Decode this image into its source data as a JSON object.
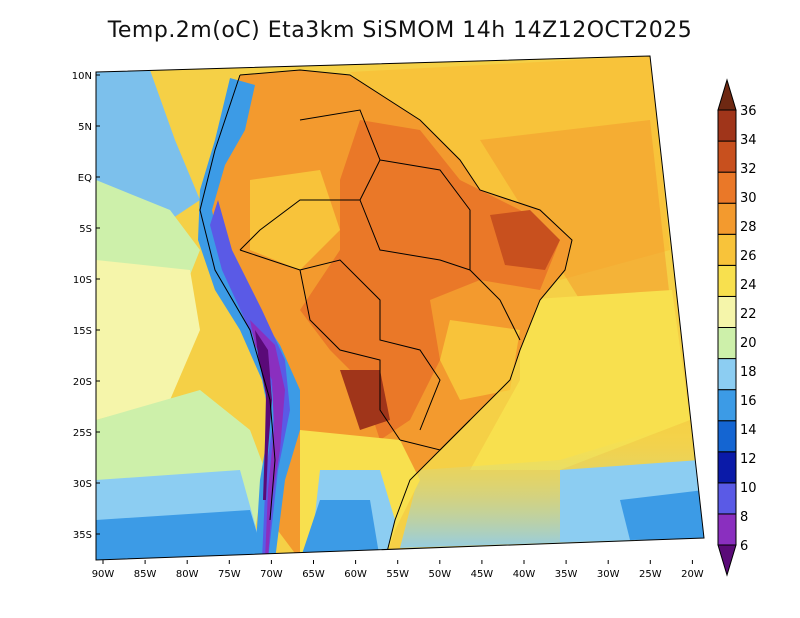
{
  "title": "Temp.2m(oC) Eta3km SiSMOM 14h 14Z12OCT2025",
  "lat_labels": [
    "10N",
    "5N",
    "EQ",
    "5S",
    "10S",
    "15S",
    "20S",
    "25S",
    "30S",
    "35S"
  ],
  "lon_labels": [
    "90W",
    "85W",
    "80W",
    "75W",
    "70W",
    "65W",
    "60W",
    "55W",
    "50W",
    "45W",
    "40W",
    "35W",
    "30W",
    "25W",
    "20W"
  ],
  "colorbar": {
    "labels": [
      "6",
      "8",
      "10",
      "12",
      "14",
      "16",
      "18",
      "20",
      "22",
      "24",
      "26",
      "28",
      "30",
      "32",
      "34",
      "36"
    ],
    "colors": [
      "#5a0a78",
      "#8a2fbf",
      "#5a5ae6",
      "#0a1aa8",
      "#1465d2",
      "#3c9be6",
      "#8ccdf2",
      "#cdf0aa",
      "#f5f5aa",
      "#f8e04e",
      "#f8c33a",
      "#f39a2e",
      "#ea7828",
      "#c8501e",
      "#a0351a",
      "#6e2812"
    ]
  }
}
